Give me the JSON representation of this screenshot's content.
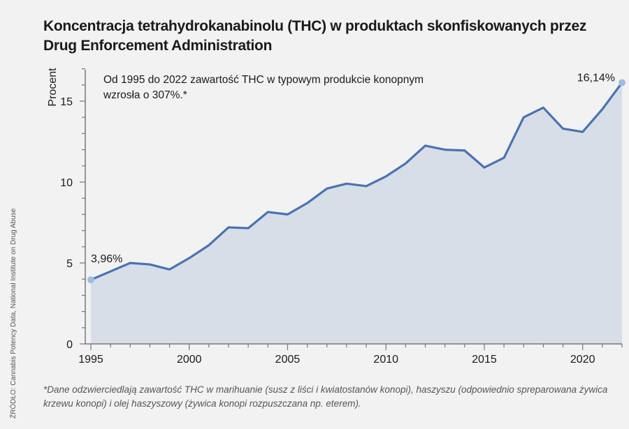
{
  "chart_data": {
    "type": "area",
    "title": "Koncentracja tetrahydrokanabinolu (THC) w produktach skonfiskowanych przez Drug Enforcement Administration",
    "ylabel": "Procent",
    "xlabel": "",
    "ylim": [
      0,
      17
    ],
    "xlim": [
      1995,
      2022
    ],
    "x_ticks": [
      1995,
      2000,
      2005,
      2010,
      2015,
      2020
    ],
    "y_ticks": [
      0,
      5,
      10,
      15
    ],
    "x": [
      1995,
      1996,
      1997,
      1998,
      1999,
      2000,
      2001,
      2002,
      2003,
      2004,
      2005,
      2006,
      2007,
      2008,
      2009,
      2010,
      2011,
      2012,
      2013,
      2014,
      2015,
      2016,
      2017,
      2018,
      2019,
      2020,
      2021,
      2022
    ],
    "values": [
      3.96,
      4.48,
      5.0,
      4.91,
      4.6,
      5.3,
      6.1,
      7.2,
      7.15,
      8.15,
      8.0,
      8.7,
      9.6,
      9.9,
      9.75,
      10.35,
      11.15,
      12.25,
      12.0,
      11.95,
      10.9,
      11.5,
      14.0,
      14.6,
      13.3,
      13.1,
      14.5,
      16.14
    ],
    "annotations": {
      "start": "3,96%",
      "end": "16,14%"
    },
    "note": "Od 1995 do 2022 zawartość THC w typowym produkcie konopnym  wzrosła o 307%.*",
    "colors": {
      "line": "#4a72b5",
      "fill": "#d8dee8",
      "marker": "#9dbde0"
    }
  },
  "footnote": "*Dane odzwierciedlają zawartość THC w marihuanie (susz z liści i kwiatostanów konopi), haszyszu (odpowiednio spreparowana żywica krzewu konopi) i olej haszyszowy (żywica konopi rozpuszczana np. eterem).",
  "source": "ŹRÓDŁO: Cannabis Potency Data, National Institute on Drug Abuse"
}
